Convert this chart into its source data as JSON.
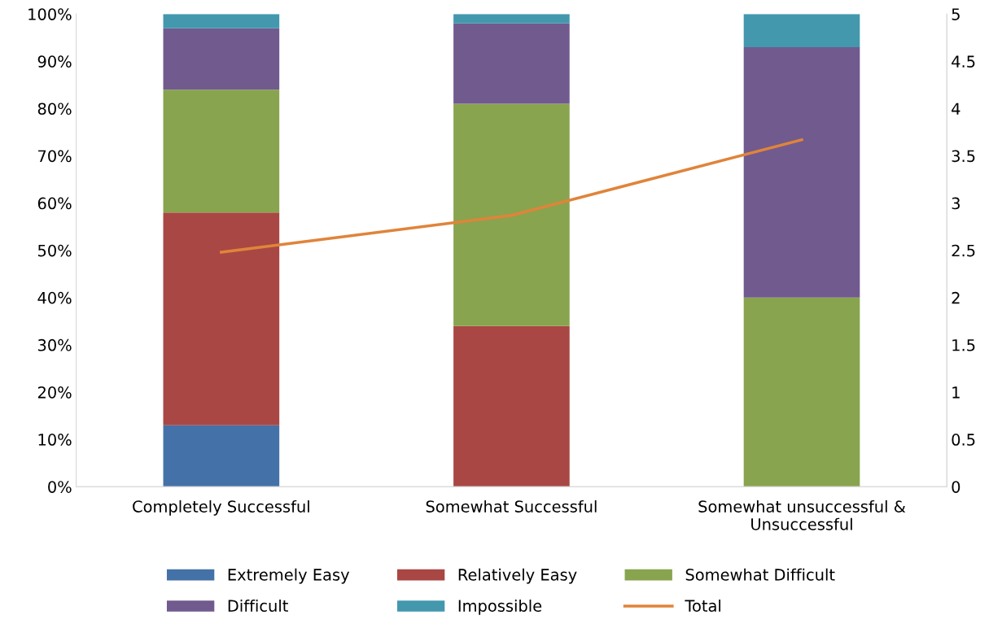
{
  "chart_data": {
    "type": "bar",
    "stacked": true,
    "categories": [
      "Completely Successful",
      "Somewhat Successful",
      "Somewhat unsuccessful & Unsuccessful"
    ],
    "series": [
      {
        "name": "Extremely Easy",
        "color": "#4472a8",
        "values": [
          13,
          0,
          0
        ]
      },
      {
        "name": "Relatively Easy",
        "color": "#a94744",
        "values": [
          45,
          34,
          0
        ]
      },
      {
        "name": "Somewhat Difficult",
        "color": "#88a44e",
        "values": [
          26,
          47,
          40
        ]
      },
      {
        "name": "Difficult",
        "color": "#715a8e",
        "values": [
          13,
          17,
          53
        ]
      },
      {
        "name": "Impossible",
        "color": "#4398ae",
        "values": [
          3,
          2,
          7
        ]
      },
      {
        "name": "Total",
        "color": "#e0843a",
        "type": "line",
        "axis": "y2",
        "values": [
          2.48,
          2.87,
          3.67
        ]
      }
    ],
    "ylim": [
      0,
      100
    ],
    "yticks": [
      {
        "value": 0,
        "label": "0%"
      },
      {
        "value": 10,
        "label": "10%"
      },
      {
        "value": 20,
        "label": "20%"
      },
      {
        "value": 30,
        "label": "30%"
      },
      {
        "value": 40,
        "label": "40%"
      },
      {
        "value": 50,
        "label": "50%"
      },
      {
        "value": 60,
        "label": "60%"
      },
      {
        "value": 70,
        "label": "70%"
      },
      {
        "value": 80,
        "label": "80%"
      },
      {
        "value": 90,
        "label": "90%"
      },
      {
        "value": 100,
        "label": "100%"
      }
    ],
    "y2lim": [
      0,
      5
    ],
    "y2ticks": [
      0,
      0.5,
      1,
      1.5,
      2,
      2.5,
      3,
      3.5,
      4,
      4.5,
      5
    ],
    "grid": false,
    "legend": "bottom",
    "marker": "none",
    "line_style": "solid"
  }
}
